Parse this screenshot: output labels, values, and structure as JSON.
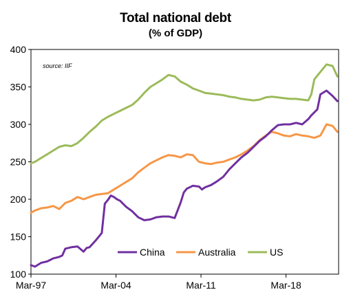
{
  "chart_data": {
    "type": "line",
    "title": "Total national debt",
    "subtitle": "(% of GDP)",
    "source": "source:  IIF",
    "xlabel": "",
    "ylabel": "",
    "ylim": [
      100,
      400
    ],
    "yticks": [
      100,
      150,
      200,
      250,
      300,
      350,
      400
    ],
    "xlim": [
      1997.17,
      2022.5
    ],
    "xticks": [
      {
        "label": "Mar-97",
        "value": 1997.17
      },
      {
        "label": "Mar-04",
        "value": 2004.17
      },
      {
        "label": "Mar-11",
        "value": 2011.17
      },
      {
        "label": "Mar-18",
        "value": 2018.17
      }
    ],
    "grid": false,
    "legend_position": "bottom-center",
    "series": [
      {
        "name": "China",
        "color": "#7030a0",
        "x": [
          1997.17,
          1997.5,
          1998,
          1998.5,
          1999,
          1999.5,
          1999.75,
          2000,
          2000.5,
          2001,
          2001.5,
          2001.75,
          2002,
          2002.5,
          2003,
          2003.25,
          2003.5,
          2003.75,
          2004,
          2004.25,
          2004.5,
          2005,
          2005.5,
          2006,
          2006.5,
          2007,
          2007.5,
          2008,
          2008.5,
          2009,
          2009.5,
          2009.75,
          2010,
          2010.5,
          2011,
          2011.25,
          2011.5,
          2012,
          2012.5,
          2013,
          2013.5,
          2014,
          2014.5,
          2015,
          2015.5,
          2016,
          2016.5,
          2017,
          2017.5,
          2018,
          2018.5,
          2019,
          2019.5,
          2020,
          2020.25,
          2020.5,
          2020.75,
          2021,
          2021.5,
          2022,
          2022.4
        ],
        "values": [
          112,
          110,
          115,
          117,
          121,
          123,
          125,
          134,
          136,
          137,
          130,
          135,
          136,
          145,
          155,
          194,
          199,
          205,
          203,
          200,
          198,
          190,
          184,
          176,
          172,
          173,
          176,
          177,
          177,
          175,
          196,
          209,
          214,
          218,
          217,
          213,
          216,
          219,
          224,
          230,
          240,
          248,
          256,
          262,
          270,
          278,
          284,
          292,
          299,
          300,
          300,
          302,
          300,
          307,
          312,
          316,
          320,
          340,
          345,
          338,
          331
        ]
      },
      {
        "name": "Australia",
        "color": "#f79646",
        "x": [
          1997.17,
          1997.5,
          1998,
          1998.5,
          1999,
          1999.5,
          2000,
          2000.5,
          2001,
          2001.5,
          2002,
          2002.5,
          2003,
          2003.5,
          2004,
          2004.5,
          2005,
          2005.5,
          2006,
          2006.5,
          2007,
          2007.5,
          2008,
          2008.5,
          2009,
          2009.5,
          2010,
          2010.5,
          2011,
          2011.5,
          2012,
          2012.5,
          2013,
          2013.5,
          2014,
          2014.5,
          2015,
          2015.5,
          2016,
          2016.5,
          2017,
          2017.5,
          2018,
          2018.5,
          2019,
          2019.5,
          2020,
          2020.5,
          2021,
          2021.5,
          2022,
          2022.4
        ],
        "values": [
          182,
          185,
          188,
          189,
          191,
          187,
          195,
          198,
          203,
          200,
          203,
          206,
          207,
          208,
          213,
          218,
          223,
          228,
          236,
          242,
          248,
          252,
          256,
          259,
          258,
          256,
          260,
          259,
          250,
          248,
          247,
          249,
          250,
          253,
          256,
          260,
          265,
          271,
          279,
          285,
          290,
          288,
          285,
          284,
          287,
          285,
          284,
          282,
          285,
          300,
          298,
          290
        ]
      },
      {
        "name": "US",
        "color": "#9bbb59",
        "x": [
          1997.17,
          1997.5,
          1998,
          1998.5,
          1999,
          1999.5,
          2000,
          2000.5,
          2001,
          2001.5,
          2002,
          2002.5,
          2003,
          2003.5,
          2004,
          2004.5,
          2005,
          2005.5,
          2006,
          2006.5,
          2007,
          2007.5,
          2008,
          2008.5,
          2009,
          2009.5,
          2010,
          2010.5,
          2011,
          2011.5,
          2012,
          2012.5,
          2013,
          2013.5,
          2014,
          2014.5,
          2015,
          2015.5,
          2016,
          2016.5,
          2017,
          2017.5,
          2018,
          2018.5,
          2019,
          2019.5,
          2020,
          2020.25,
          2020.5,
          2021,
          2021.5,
          2022,
          2022.4
        ],
        "values": [
          248,
          250,
          255,
          260,
          265,
          270,
          272,
          271,
          275,
          282,
          290,
          297,
          305,
          310,
          314,
          318,
          322,
          326,
          333,
          342,
          350,
          355,
          360,
          366,
          364,
          357,
          353,
          348,
          345,
          342,
          341,
          340,
          339,
          337,
          336,
          334,
          333,
          332,
          333,
          336,
          337,
          336,
          335,
          334,
          334,
          333,
          332,
          340,
          360,
          370,
          380,
          378,
          364
        ]
      }
    ]
  }
}
